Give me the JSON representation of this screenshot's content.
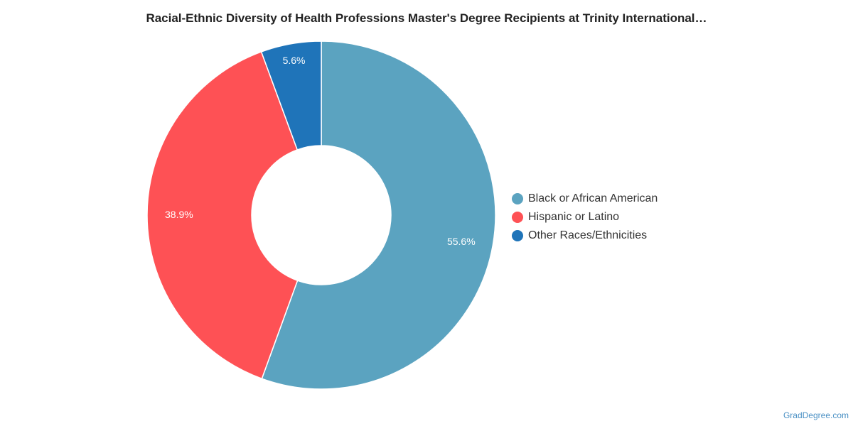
{
  "chart_data": {
    "type": "pie",
    "donut": true,
    "title": "Racial-Ethnic Diversity of Health Professions Master's Degree Recipients at Trinity International…",
    "slices": [
      {
        "name": "Black or African American",
        "value": 55.6,
        "label": "55.6%",
        "color": "#5ba3c0"
      },
      {
        "name": "Hispanic or Latino",
        "value": 38.9,
        "label": "38.9%",
        "color": "#fe5155"
      },
      {
        "name": "Other Races/Ethnicities",
        "value": 5.6,
        "label": "5.6%",
        "color": "#1f74b9"
      }
    ],
    "legend_position": "right"
  },
  "credit": "GradDegree.com"
}
